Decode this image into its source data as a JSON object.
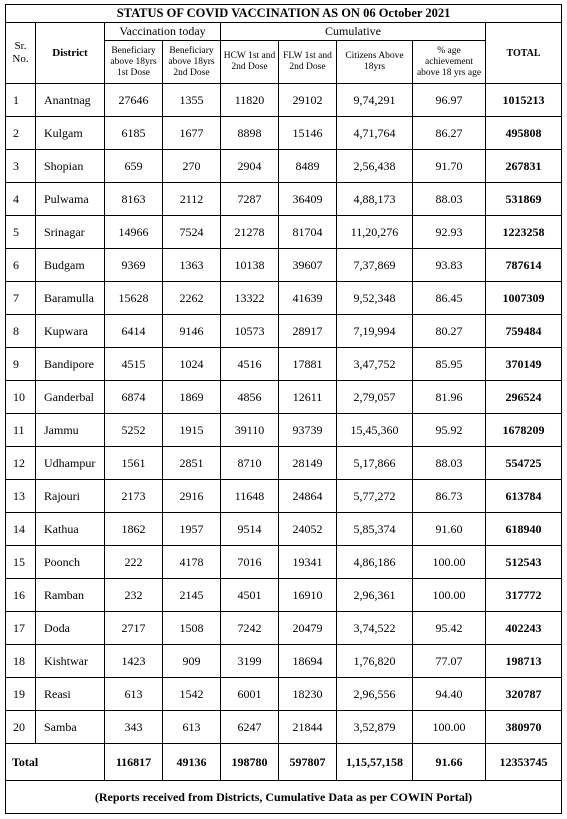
{
  "title": "STATUS OF COVID VACCINATION AS ON 06 October 2021",
  "groups": {
    "vaccination_today": "Vaccination today",
    "cumulative": "Cumulative"
  },
  "headers": {
    "sr_no": "Sr. No.",
    "district": "District",
    "dose1": "Beneficiary above 18yrs 1st Dose",
    "dose2": "Beneficiary above 18yrs 2nd Dose",
    "hcw": "HCW 1st and 2nd Dose",
    "flw": "FLW 1st and 2nd Dose",
    "citizens": "Citizens Above 18yrs",
    "pct": "% age achievement above 18 yrs age",
    "total": "TOTAL"
  },
  "rows": [
    {
      "sr": "1",
      "district": "Anantnag",
      "d1": "27646",
      "d2": "1355",
      "hcw": "11820",
      "flw": "29102",
      "cit": "9,74,291",
      "pct": "96.97",
      "total": "1015213"
    },
    {
      "sr": "2",
      "district": "Kulgam",
      "d1": "6185",
      "d2": "1677",
      "hcw": "8898",
      "flw": "15146",
      "cit": "4,71,764",
      "pct": "86.27",
      "total": "495808"
    },
    {
      "sr": "3",
      "district": "Shopian",
      "d1": "659",
      "d2": "270",
      "hcw": "2904",
      "flw": "8489",
      "cit": "2,56,438",
      "pct": "91.70",
      "total": "267831"
    },
    {
      "sr": "4",
      "district": "Pulwama",
      "d1": "8163",
      "d2": "2112",
      "hcw": "7287",
      "flw": "36409",
      "cit": "4,88,173",
      "pct": "88.03",
      "total": "531869"
    },
    {
      "sr": "5",
      "district": "Srinagar",
      "d1": "14966",
      "d2": "7524",
      "hcw": "21278",
      "flw": "81704",
      "cit": "11,20,276",
      "pct": "92.93",
      "total": "1223258"
    },
    {
      "sr": "6",
      "district": "Budgam",
      "d1": "9369",
      "d2": "1363",
      "hcw": "10138",
      "flw": "39607",
      "cit": "7,37,869",
      "pct": "93.83",
      "total": "787614"
    },
    {
      "sr": "7",
      "district": "Baramulla",
      "d1": "15628",
      "d2": "2262",
      "hcw": "13322",
      "flw": "41639",
      "cit": "9,52,348",
      "pct": "86.45",
      "total": "1007309"
    },
    {
      "sr": "8",
      "district": "Kupwara",
      "d1": "6414",
      "d2": "9146",
      "hcw": "10573",
      "flw": "28917",
      "cit": "7,19,994",
      "pct": "80.27",
      "total": "759484"
    },
    {
      "sr": "9",
      "district": "Bandipore",
      "d1": "4515",
      "d2": "1024",
      "hcw": "4516",
      "flw": "17881",
      "cit": "3,47,752",
      "pct": "85.95",
      "total": "370149"
    },
    {
      "sr": "10",
      "district": "Ganderbal",
      "d1": "6874",
      "d2": "1869",
      "hcw": "4856",
      "flw": "12611",
      "cit": "2,79,057",
      "pct": "81.96",
      "total": "296524"
    },
    {
      "sr": "11",
      "district": "Jammu",
      "d1": "5252",
      "d2": "1915",
      "hcw": "39110",
      "flw": "93739",
      "cit": "15,45,360",
      "pct": "95.92",
      "total": "1678209"
    },
    {
      "sr": "12",
      "district": "Udhampur",
      "d1": "1561",
      "d2": "2851",
      "hcw": "8710",
      "flw": "28149",
      "cit": "5,17,866",
      "pct": "88.03",
      "total": "554725"
    },
    {
      "sr": "13",
      "district": "Rajouri",
      "d1": "2173",
      "d2": "2916",
      "hcw": "11648",
      "flw": "24864",
      "cit": "5,77,272",
      "pct": "86.73",
      "total": "613784"
    },
    {
      "sr": "14",
      "district": "Kathua",
      "d1": "1862",
      "d2": "1957",
      "hcw": "9514",
      "flw": "24052",
      "cit": "5,85,374",
      "pct": "91.60",
      "total": "618940"
    },
    {
      "sr": "15",
      "district": "Poonch",
      "d1": "222",
      "d2": "4178",
      "hcw": "7016",
      "flw": "19341",
      "cit": "4,86,186",
      "pct": "100.00",
      "total": "512543"
    },
    {
      "sr": "16",
      "district": "Ramban",
      "d1": "232",
      "d2": "2145",
      "hcw": "4501",
      "flw": "16910",
      "cit": "2,96,361",
      "pct": "100.00",
      "total": "317772"
    },
    {
      "sr": "17",
      "district": "Doda",
      "d1": "2717",
      "d2": "1508",
      "hcw": "7242",
      "flw": "20479",
      "cit": "3,74,522",
      "pct": "95.42",
      "total": "402243"
    },
    {
      "sr": "18",
      "district": "Kishtwar",
      "d1": "1423",
      "d2": "909",
      "hcw": "3199",
      "flw": "18694",
      "cit": "1,76,820",
      "pct": "77.07",
      "total": "198713"
    },
    {
      "sr": "19",
      "district": "Reasi",
      "d1": "613",
      "d2": "1542",
      "hcw": "6001",
      "flw": "18230",
      "cit": "2,96,556",
      "pct": "94.40",
      "total": "320787"
    },
    {
      "sr": "20",
      "district": "Samba",
      "d1": "343",
      "d2": "613",
      "hcw": "6247",
      "flw": "21844",
      "cit": "3,52,879",
      "pct": "100.00",
      "total": "380970"
    }
  ],
  "totals": {
    "label": "Total",
    "d1": "116817",
    "d2": "49136",
    "hcw": "198780",
    "flw": "597807",
    "cit": "1,15,57,158",
    "pct": "91.66",
    "total": "12353745"
  },
  "footer": "(Reports received from Districts, Cumulative Data as per COWIN Portal)"
}
